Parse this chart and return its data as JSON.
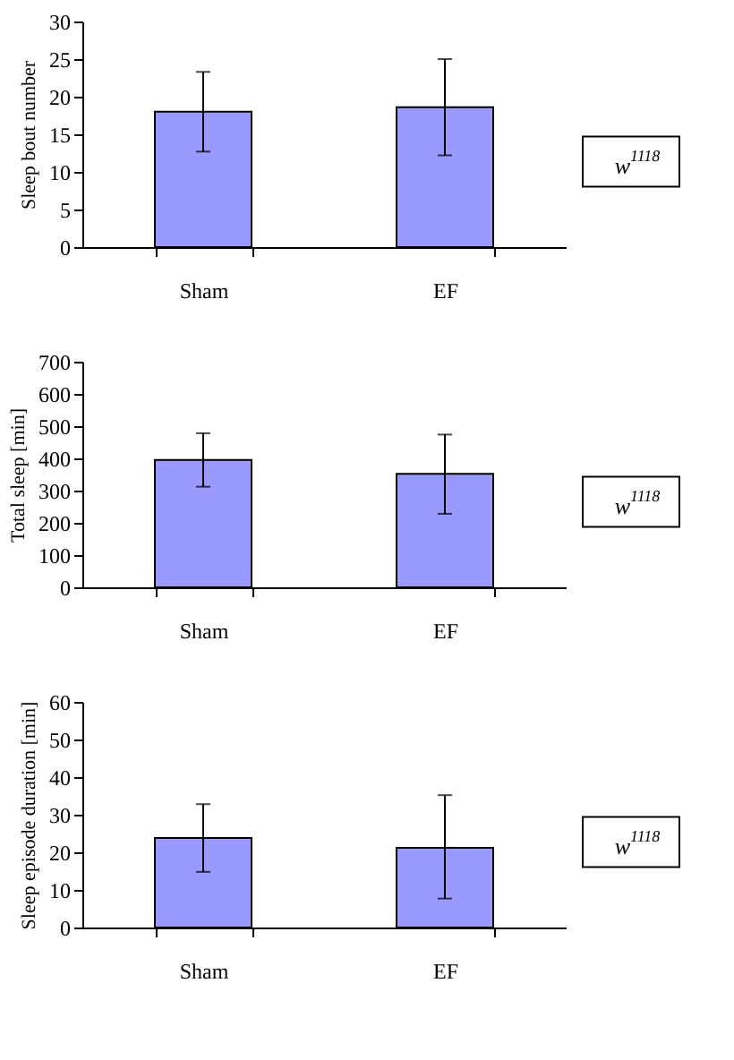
{
  "chart_data": [
    {
      "type": "bar",
      "ylabel": "Sleep bout number",
      "categories": [
        "Sham",
        "EF"
      ],
      "series": [
        {
          "color": "#9999ff",
          "values": [
            18,
            18.6
          ],
          "errors": [
            [
              12.7,
              23.3
            ],
            [
              12.2,
              25
            ]
          ]
        }
      ],
      "ylim": [
        0,
        30
      ],
      "yticks": [
        0,
        5,
        10,
        15,
        20,
        25,
        30
      ],
      "grid": false,
      "annotations": [
        "w$^{1118}$"
      ]
    },
    {
      "type": "bar",
      "ylabel": "Total sleep [min]",
      "categories": [
        "Sham",
        "EF"
      ],
      "series": [
        {
          "color": "#9999ff",
          "values": [
            395,
            352
          ],
          "errors": [
            [
              312,
              478
            ],
            [
              228,
              474
            ]
          ]
        }
      ],
      "ylim": [
        0,
        700
      ],
      "yticks": [
        0,
        100,
        200,
        300,
        400,
        500,
        600,
        700
      ],
      "grid": false,
      "annotations": [
        "w$^{1118}$"
      ]
    },
    {
      "type": "bar",
      "ylabel": "Sleep episode duration [min]",
      "categories": [
        "Sham",
        "EF"
      ],
      "series": [
        {
          "color": "#9999ff",
          "values": [
            23.8,
            21.2
          ],
          "errors": [
            [
              14.8,
              32.8
            ],
            [
              7.7,
              35.2
            ]
          ]
        }
      ],
      "ylim": [
        0,
        60
      ],
      "yticks": [
        0,
        10,
        20,
        30,
        40,
        50,
        60
      ],
      "grid": false,
      "annotations": [
        "w$^{1118}$"
      ]
    }
  ]
}
